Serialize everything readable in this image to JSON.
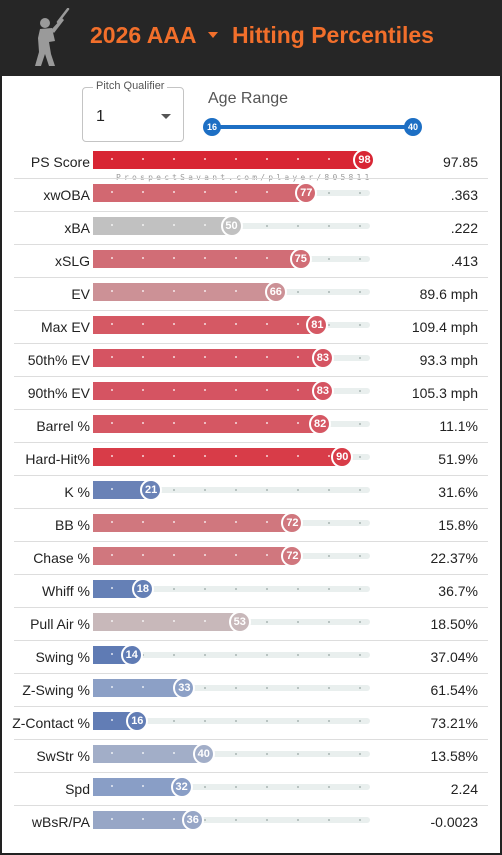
{
  "header": {
    "season": "2026 AAA",
    "title": "Hitting Percentiles",
    "logo_icon": "batter-silhouette-icon"
  },
  "controls": {
    "pitch_qualifier_label": "Pitch Qualifier",
    "pitch_qualifier_value": "1",
    "age_range_label": "Age Range",
    "age_min": "16",
    "age_max": "40"
  },
  "watermark": "ProspectSavant.com/player/805811",
  "colors": {
    "header_bg": "#262626",
    "accent_orange": "#f26f2b",
    "slider_blue": "#1d6fc4"
  },
  "rows": [
    {
      "label": "PS Score",
      "percentile": 98,
      "value": "97.85",
      "color": "#d82634"
    },
    {
      "label": "xwOBA",
      "percentile": 77,
      "value": ".363",
      "color": "#d26871"
    },
    {
      "label": "xBA",
      "percentile": 50,
      "value": ".222",
      "color": "#c1c1c1"
    },
    {
      "label": "xSLG",
      "percentile": 75,
      "value": ".413",
      "color": "#d16d76"
    },
    {
      "label": "EV",
      "percentile": 66,
      "value": "89.6 mph",
      "color": "#cc9196"
    },
    {
      "label": "Max EV",
      "percentile": 81,
      "value": "109.4 mph",
      "color": "#d55964"
    },
    {
      "label": "50th% EV",
      "percentile": 83,
      "value": "93.3 mph",
      "color": "#d55462"
    },
    {
      "label": "90th% EV",
      "percentile": 83,
      "value": "105.3 mph",
      "color": "#d55462"
    },
    {
      "label": "Barrel %",
      "percentile": 82,
      "value": "11.1%",
      "color": "#d55763"
    },
    {
      "label": "Hard-Hit%",
      "percentile": 90,
      "value": "51.9%",
      "color": "#d83c48"
    },
    {
      "label": "K %",
      "percentile": 21,
      "value": "31.6%",
      "color": "#6a82b6"
    },
    {
      "label": "BB %",
      "percentile": 72,
      "value": "15.8%",
      "color": "#d0777e"
    },
    {
      "label": "Chase %",
      "percentile": 72,
      "value": "22.37%",
      "color": "#d0777e"
    },
    {
      "label": "Whiff %",
      "percentile": 18,
      "value": "36.7%",
      "color": "#6580b6"
    },
    {
      "label": "Pull Air %",
      "percentile": 53,
      "value": "18.50%",
      "color": "#c8b8ba"
    },
    {
      "label": "Swing %",
      "percentile": 14,
      "value": "37.04%",
      "color": "#5f7bb4"
    },
    {
      "label": "Z-Swing %",
      "percentile": 33,
      "value": "61.54%",
      "color": "#8ca0c6"
    },
    {
      "label": "Z-Contact %",
      "percentile": 16,
      "value": "73.21%",
      "color": "#627db5"
    },
    {
      "label": "SwStr %",
      "percentile": 40,
      "value": "13.58%",
      "color": "#a2aec8"
    },
    {
      "label": "Spd",
      "percentile": 32,
      "value": "2.24",
      "color": "#899ec6"
    },
    {
      "label": "wBsR/PA",
      "percentile": 36,
      "value": "-0.0023",
      "color": "#97a6c6"
    }
  ]
}
